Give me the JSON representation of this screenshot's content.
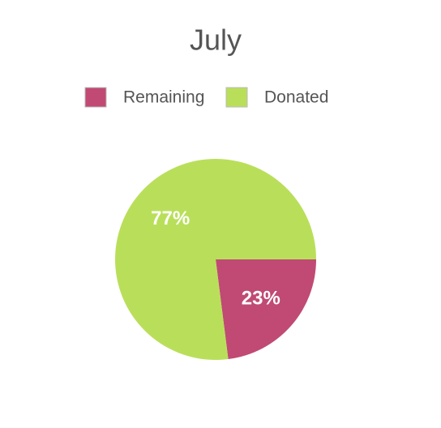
{
  "chart_data": {
    "type": "pie",
    "title": "July",
    "categories": [
      "Remaining",
      "Donated"
    ],
    "values": [
      23,
      77
    ],
    "value_labels": [
      "23%",
      "77%"
    ],
    "colors": [
      "#c04a73",
      "#b9df5a"
    ],
    "legend": "top"
  }
}
